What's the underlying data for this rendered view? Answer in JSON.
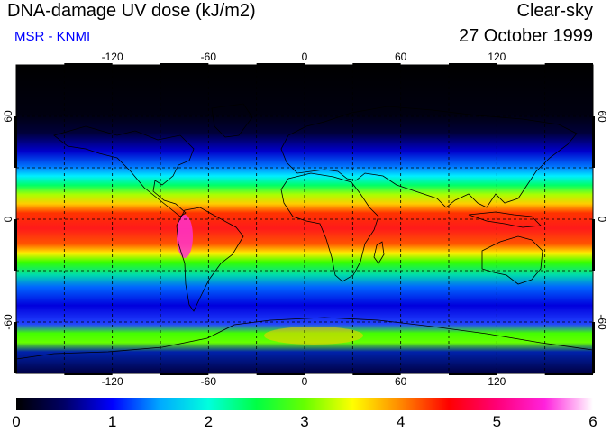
{
  "header": {
    "title": "DNA-damage UV dose (kJ/m2)",
    "subtitle": "MSR - KNMI",
    "sky_condition": "Clear-sky",
    "date": "27 October 1999"
  },
  "map": {
    "projection": "equirectangular",
    "longitude_range": [
      -180,
      180
    ],
    "latitude_range": [
      -90,
      90
    ],
    "longitude_ticks": [
      "-120",
      "-60",
      "0",
      "60",
      "120"
    ],
    "latitude_ticks": [
      "60",
      "0",
      "-60"
    ],
    "graticule": "dashed 30-degree grid"
  },
  "colorbar": {
    "labels": [
      "0",
      "1",
      "2",
      "3",
      "4",
      "5",
      "6"
    ],
    "stops": [
      "#000000",
      "#000066",
      "#0000ff",
      "#00aaff",
      "#00ffdd",
      "#00ff44",
      "#66ff00",
      "#ffff00",
      "#ff8800",
      "#ff0000",
      "#ff0077",
      "#ff22dd",
      "#ffffff"
    ]
  },
  "colors": {
    "subtitle": "#0000ff",
    "coastline": "#000000",
    "grid": "#000000"
  }
}
